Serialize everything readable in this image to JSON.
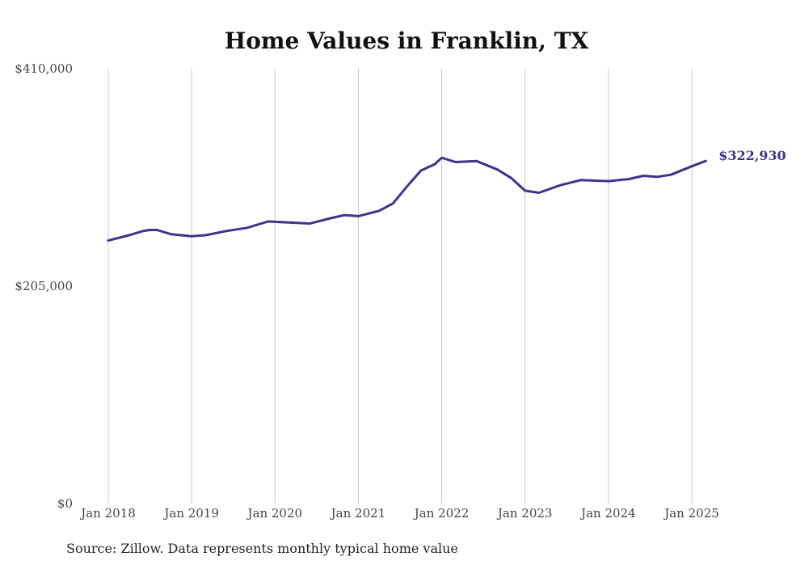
{
  "chart_data": {
    "type": "line",
    "title": "Home Values in Franklin, TX",
    "xlabel": "",
    "ylabel": "",
    "ylim": [
      0,
      410000
    ],
    "y_ticks": [
      {
        "value": 0,
        "label": "$0"
      },
      {
        "value": 205000,
        "label": "$205,000"
      },
      {
        "value": 410000,
        "label": "$410,000"
      }
    ],
    "x_ticks": [
      {
        "value": 2018,
        "label": "Jan 2018"
      },
      {
        "value": 2019,
        "label": "Jan 2019"
      },
      {
        "value": 2020,
        "label": "Jan 2020"
      },
      {
        "value": 2021,
        "label": "Jan 2021"
      },
      {
        "value": 2022,
        "label": "Jan 2022"
      },
      {
        "value": 2023,
        "label": "Jan 2023"
      },
      {
        "value": 2024,
        "label": "Jan 2024"
      },
      {
        "value": 2025,
        "label": "Jan 2025"
      }
    ],
    "grid": "vertical",
    "line_color": "#3d348b",
    "series": [
      {
        "x": [
          "2018-01",
          "2018-04",
          "2018-06",
          "2018-07",
          "2018-08",
          "2018-10",
          "2019-01",
          "2019-03",
          "2019-06",
          "2019-09",
          "2019-12",
          "2020-03",
          "2020-06",
          "2020-09",
          "2020-11",
          "2021-01",
          "2021-04",
          "2021-06",
          "2021-08",
          "2021-10",
          "2021-12",
          "2022-01",
          "2022-03",
          "2022-06",
          "2022-09",
          "2022-11",
          "2023-01",
          "2023-03",
          "2023-06",
          "2023-09",
          "2024-01",
          "2024-04",
          "2024-06",
          "2024-08",
          "2024-10",
          "2025-01",
          "2025-03"
        ],
        "y": [
          248000,
          253000,
          257000,
          258000,
          258000,
          254000,
          252000,
          253000,
          257000,
          260000,
          266000,
          265000,
          264000,
          269000,
          272000,
          271000,
          276000,
          283000,
          299000,
          314000,
          320000,
          326000,
          322000,
          323000,
          315000,
          307000,
          295000,
          293000,
          300000,
          305000,
          304000,
          306000,
          309000,
          308000,
          310000,
          318000,
          323000
        ]
      }
    ],
    "end_label": "$322,930",
    "source": "Source: Zillow. Data represents monthly typical home value"
  }
}
